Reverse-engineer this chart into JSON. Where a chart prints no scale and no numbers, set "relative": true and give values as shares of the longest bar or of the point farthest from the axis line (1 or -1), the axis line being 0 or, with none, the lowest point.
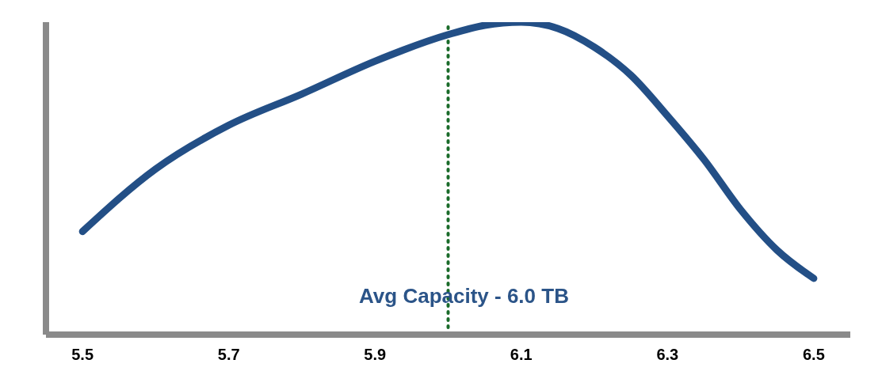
{
  "chart_data": {
    "type": "line",
    "relative": true,
    "x": [
      5.5,
      5.6,
      5.7,
      5.8,
      5.9,
      6.0,
      6.05,
      6.1,
      6.15,
      6.2,
      6.25,
      6.3,
      6.35,
      6.4,
      6.45,
      6.5
    ],
    "series": [
      {
        "color": "#234f86",
        "values": [
          0.33,
          0.53,
          0.67,
          0.77,
          0.875,
          0.96,
          0.99,
          1,
          0.98,
          0.92,
          0.83,
          0.7,
          0.56,
          0.4,
          0.27,
          0.18
        ]
      }
    ],
    "xlim": [
      5.45,
      6.55
    ],
    "xticks": [
      5.5,
      5.7,
      5.9,
      6.1,
      6.3,
      6.5
    ],
    "ref_lines": [
      {
        "axis": "x",
        "value": 6.0,
        "label": "Avg Capacity  -  6.0 TB",
        "color": "#1a6b2a",
        "line_style": "dotted"
      }
    ],
    "grid": false,
    "legend": false
  }
}
